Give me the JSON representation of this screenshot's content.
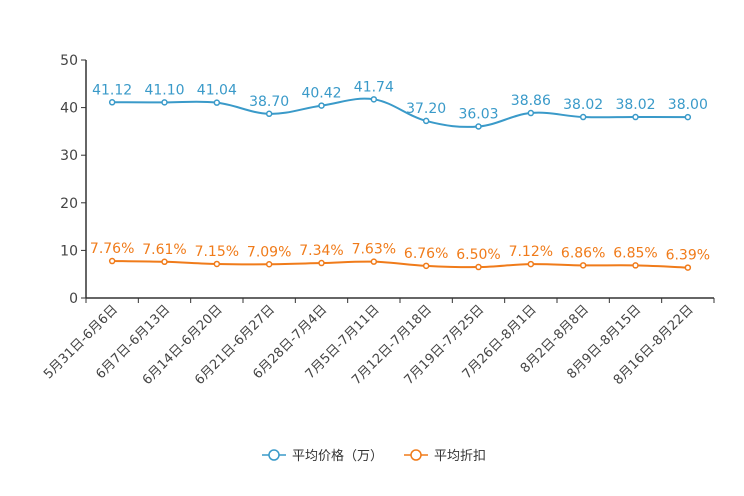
{
  "chart_data": {
    "type": "line",
    "title": "",
    "xlabel": "",
    "ylabel": "",
    "ylim": [
      0,
      50
    ],
    "yticks": [
      0,
      10,
      20,
      30,
      40,
      50
    ],
    "grid": false,
    "legend_position": "bottom-center",
    "categories": [
      "5月31日-6月6日",
      "6月7日-6月13日",
      "6月14日-6月20日",
      "6月21日-6月27日",
      "6月28日-7月4日",
      "7月5日-7月11日",
      "7月12日-7月18日",
      "7月19日-7月25日",
      "7月26日-8月1日",
      "8月2日-8月8日",
      "8月9日-8月15日",
      "8月16日-8月22日"
    ],
    "series": [
      {
        "name": "平均价格（万）",
        "color": "#3a9ac9",
        "values": [
          41.12,
          41.1,
          41.04,
          38.7,
          40.42,
          41.74,
          37.2,
          36.03,
          38.86,
          38.02,
          38.02,
          38.0
        ],
        "labels": [
          "41.12",
          "41.10",
          "41.04",
          "38.70",
          "40.42",
          "41.74",
          "37.20",
          "36.03",
          "38.86",
          "38.02",
          "38.02",
          "38.00"
        ]
      },
      {
        "name": "平均折扣",
        "color": "#f07b1a",
        "values": [
          7.76,
          7.61,
          7.15,
          7.09,
          7.34,
          7.63,
          6.76,
          6.5,
          7.12,
          6.86,
          6.85,
          6.39
        ],
        "labels": [
          "7.76%",
          "7.61%",
          "7.15%",
          "7.09%",
          "7.34%",
          "7.63%",
          "6.76%",
          "6.50%",
          "7.12%",
          "6.86%",
          "6.85%",
          "6.39%"
        ]
      }
    ]
  }
}
